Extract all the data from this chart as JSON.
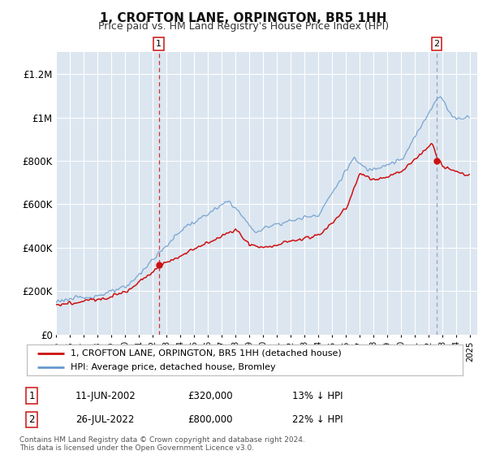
{
  "title": "1, CROFTON LANE, ORPINGTON, BR5 1HH",
  "subtitle": "Price paid vs. HM Land Registry's House Price Index (HPI)",
  "bg_color": "#dce6f0",
  "grid_color": "#ffffff",
  "ylabel_vals": [
    0,
    200000,
    400000,
    600000,
    800000,
    1000000,
    1200000
  ],
  "ylabel_labels": [
    "£0",
    "£200K",
    "£400K",
    "£600K",
    "£800K",
    "£1M",
    "£1.2M"
  ],
  "ylim": [
    0,
    1300000
  ],
  "hpi_color": "#6699cc",
  "price_color": "#cc1111",
  "marker1_x": 2002.44,
  "marker1_value": 320000,
  "marker2_x": 2022.56,
  "marker2_value": 800000,
  "marker1_label": "1",
  "marker2_label": "2",
  "marker1_date_str": "11-JUN-2002",
  "marker1_price_str": "£320,000",
  "marker1_hpi_str": "13% ↓ HPI",
  "marker2_date_str": "26-JUL-2022",
  "marker2_price_str": "£800,000",
  "marker2_hpi_str": "22% ↓ HPI",
  "legend_label1": "1, CROFTON LANE, ORPINGTON, BR5 1HH (detached house)",
  "legend_label2": "HPI: Average price, detached house, Bromley",
  "footer1": "Contains HM Land Registry data © Crown copyright and database right 2024.",
  "footer2": "This data is licensed under the Open Government Licence v3.0.",
  "xlim_start": 1995,
  "xlim_end": 2025.5
}
